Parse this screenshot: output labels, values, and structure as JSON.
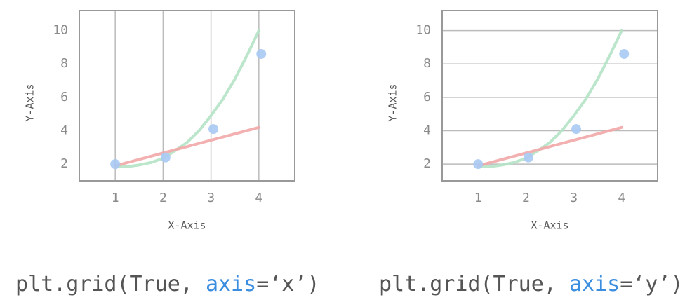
{
  "chart_data": [
    {
      "type": "line",
      "grid": "x",
      "xlabel": "X-Axis",
      "ylabel": "Y-Axis",
      "xlim": [
        0.25,
        4.75
      ],
      "ylim": [
        1,
        11.2
      ],
      "xticks": [
        1,
        2,
        3,
        4
      ],
      "yticks": [
        2,
        4,
        6,
        8,
        10
      ],
      "series": [
        {
          "type": "line",
          "color": "#b5e3c5",
          "x": [
            1,
            1.25,
            1.5,
            1.75,
            2,
            2.25,
            2.5,
            2.75,
            3,
            3.25,
            3.5,
            3.75,
            4
          ],
          "values": [
            1.85,
            1.85,
            1.95,
            2.1,
            2.35,
            2.8,
            3.3,
            4.0,
            4.9,
            5.9,
            7.1,
            8.5,
            10
          ]
        },
        {
          "type": "line",
          "color": "#f2a7a7",
          "x": [
            1,
            4
          ],
          "values": [
            1.9,
            4.2
          ]
        },
        {
          "type": "scatter",
          "color": "#a9c9f3",
          "x": [
            1,
            2.05,
            3.05,
            4.05
          ],
          "values": [
            2,
            2.4,
            4.1,
            8.6
          ]
        }
      ]
    },
    {
      "type": "line",
      "grid": "y",
      "xlabel": "X-Axis",
      "ylabel": "Y-Axis",
      "xlim": [
        0.25,
        4.75
      ],
      "ylim": [
        1,
        11.2
      ],
      "xticks": [
        1,
        2,
        3,
        4
      ],
      "yticks": [
        2,
        4,
        6,
        8,
        10
      ],
      "series": [
        {
          "type": "line",
          "color": "#b5e3c5",
          "x": [
            1,
            1.25,
            1.5,
            1.75,
            2,
            2.25,
            2.5,
            2.75,
            3,
            3.25,
            3.5,
            3.75,
            4
          ],
          "values": [
            1.85,
            1.85,
            1.95,
            2.1,
            2.35,
            2.8,
            3.3,
            4.0,
            4.9,
            5.9,
            7.1,
            8.5,
            10
          ]
        },
        {
          "type": "line",
          "color": "#f2a7a7",
          "x": [
            1,
            4
          ],
          "values": [
            1.9,
            4.2
          ]
        },
        {
          "type": "scatter",
          "color": "#a9c9f3",
          "x": [
            1,
            2.05,
            3.05,
            4.05
          ],
          "values": [
            2,
            2.4,
            4.1,
            8.6
          ]
        }
      ]
    }
  ],
  "captions": [
    {
      "parts": [
        "plt.grid(True, ",
        "axis",
        "=‘x’)"
      ]
    },
    {
      "parts": [
        "plt.grid(True, ",
        "axis",
        "=‘y’)"
      ]
    }
  ]
}
